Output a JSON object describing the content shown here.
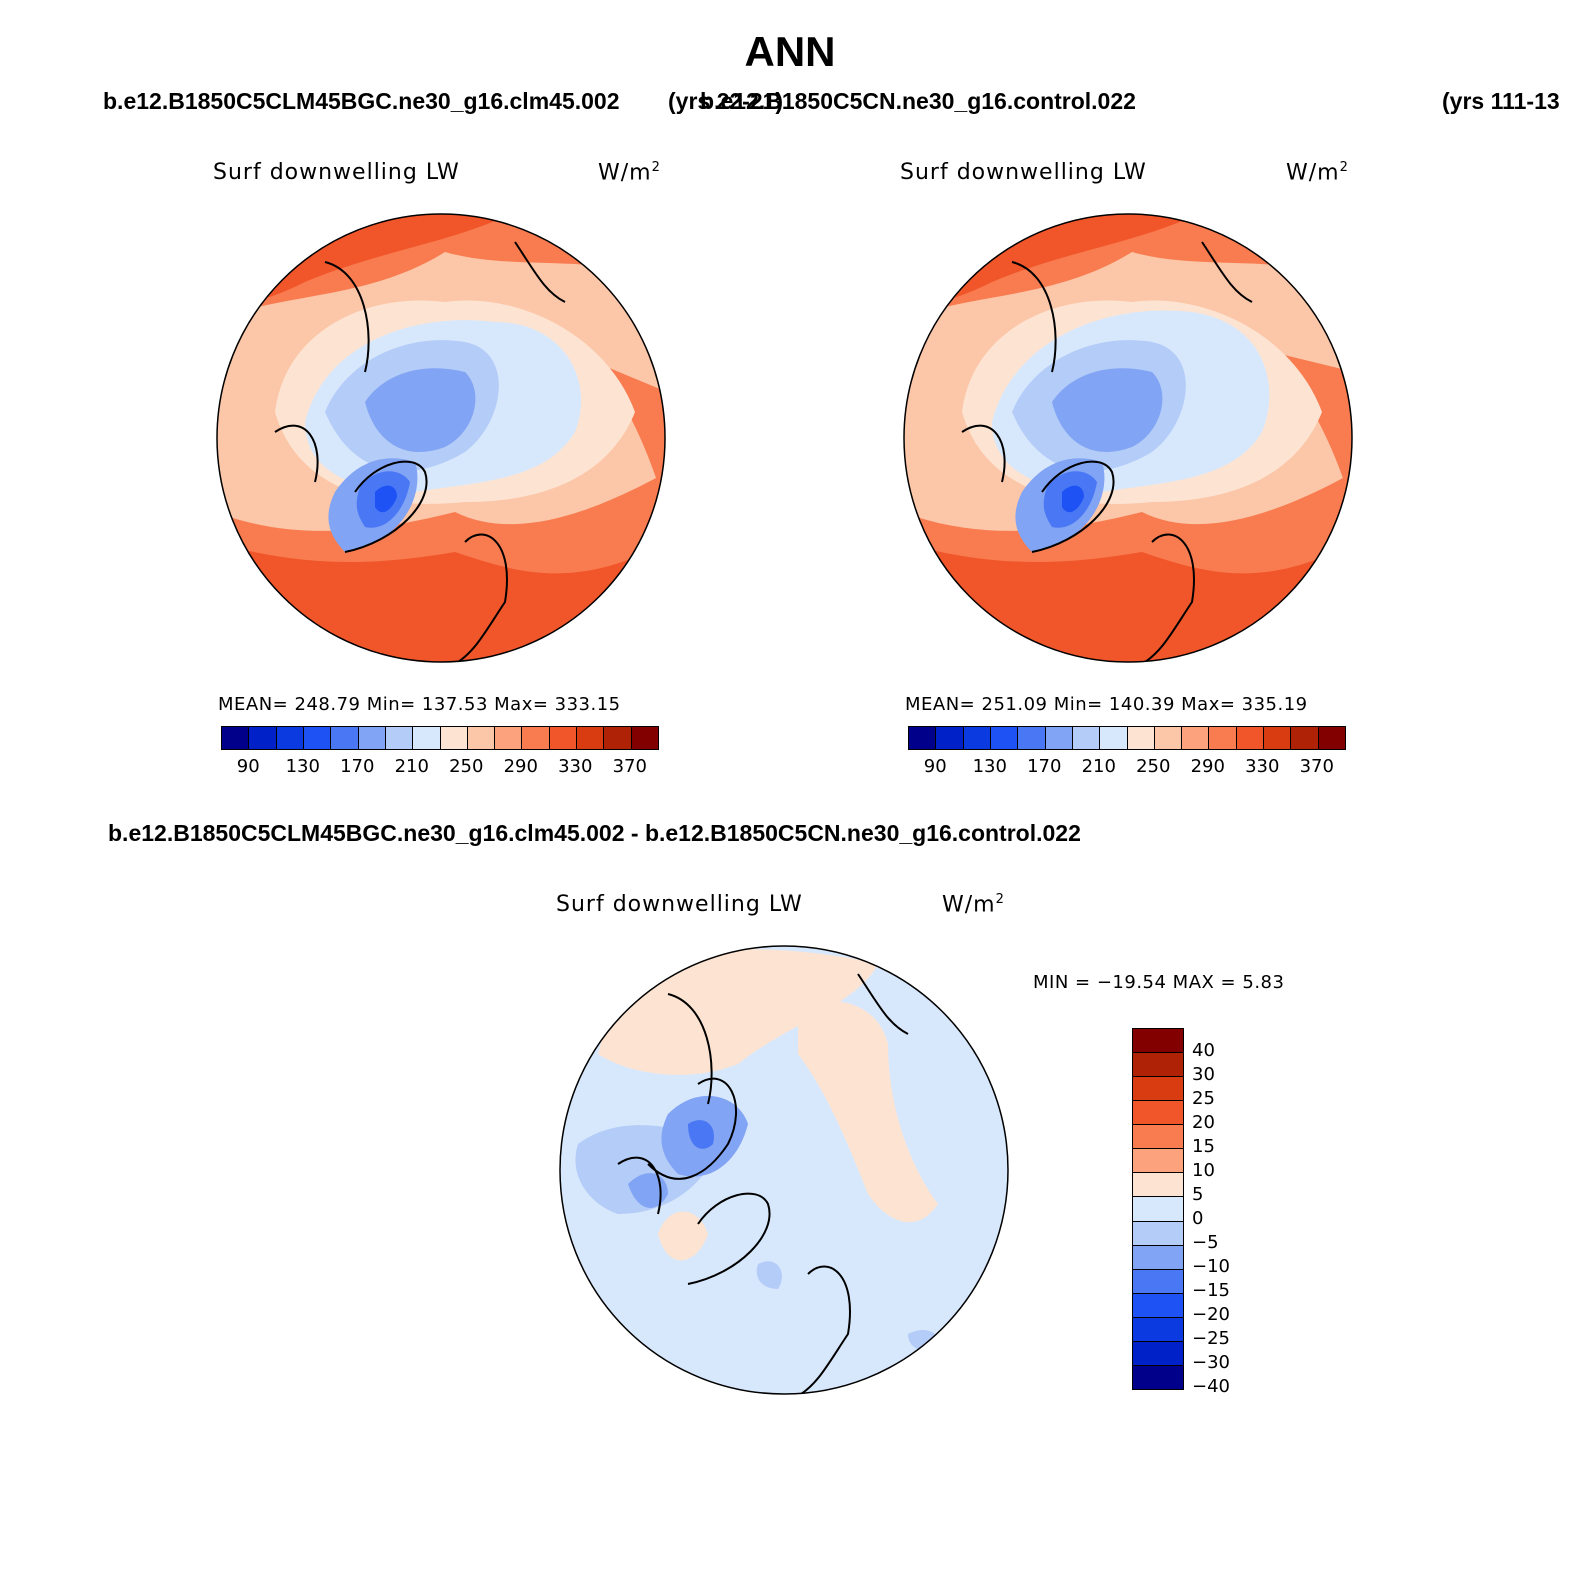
{
  "title": "ANN",
  "case1": {
    "name": "b.e12.B1850C5CLM45BGC.ne30_g16.clm45.002",
    "years": "(yrs 22-21)"
  },
  "case2": {
    "name": "b.e12.B1850C5CN.ne30_g16.control.022",
    "years": "(yrs 111-13"
  },
  "diff_title": "b.e12.B1850C5CLM45BGC.ne30_g16.clm45.002 - b.e12.B1850C5CN.ne30_g16.control.022",
  "panels": [
    {
      "variable": "Surf downwelling LW",
      "units": "W/m",
      "units_sup": "2",
      "stats": "MEAN= 248.79   Min= 137.53   Max= 333.15"
    },
    {
      "variable": "Surf downwelling LW",
      "units": "W/m",
      "units_sup": "2",
      "stats": "MEAN= 251.09   Min= 140.39   Max= 335.19"
    },
    {
      "variable": "Surf downwelling LW",
      "units": "W/m",
      "units_sup": "2",
      "stats": "MIN = −19.54 MAX =    5.83"
    }
  ],
  "abs_colorbar": {
    "colors": [
      "#00008b",
      "#0020c8",
      "#0a3ae0",
      "#1e52f4",
      "#4a78f4",
      "#82a4f4",
      "#b4ccf8",
      "#d8e8fc",
      "#fde4d2",
      "#fcc6a8",
      "#fca27c",
      "#f87c50",
      "#f0562a",
      "#d83c10",
      "#b02206",
      "#820000"
    ],
    "ticks": [
      "90",
      "130",
      "170",
      "210",
      "250",
      "290",
      "330",
      "370"
    ]
  },
  "diff_colorbar": {
    "colors": [
      "#820000",
      "#b02206",
      "#d83c10",
      "#f0562a",
      "#f87c50",
      "#fca27c",
      "#fde4d2",
      "#d8e8fc",
      "#b4ccf8",
      "#82a4f4",
      "#4a78f4",
      "#1e52f4",
      "#0a3ae0",
      "#0020c8",
      "#00008b"
    ],
    "ticks": [
      "40",
      "30",
      "25",
      "20",
      "15",
      "10",
      "5",
      "0",
      "−5",
      "−10",
      "−15",
      "−20",
      "−25",
      "−30",
      "−40"
    ]
  }
}
